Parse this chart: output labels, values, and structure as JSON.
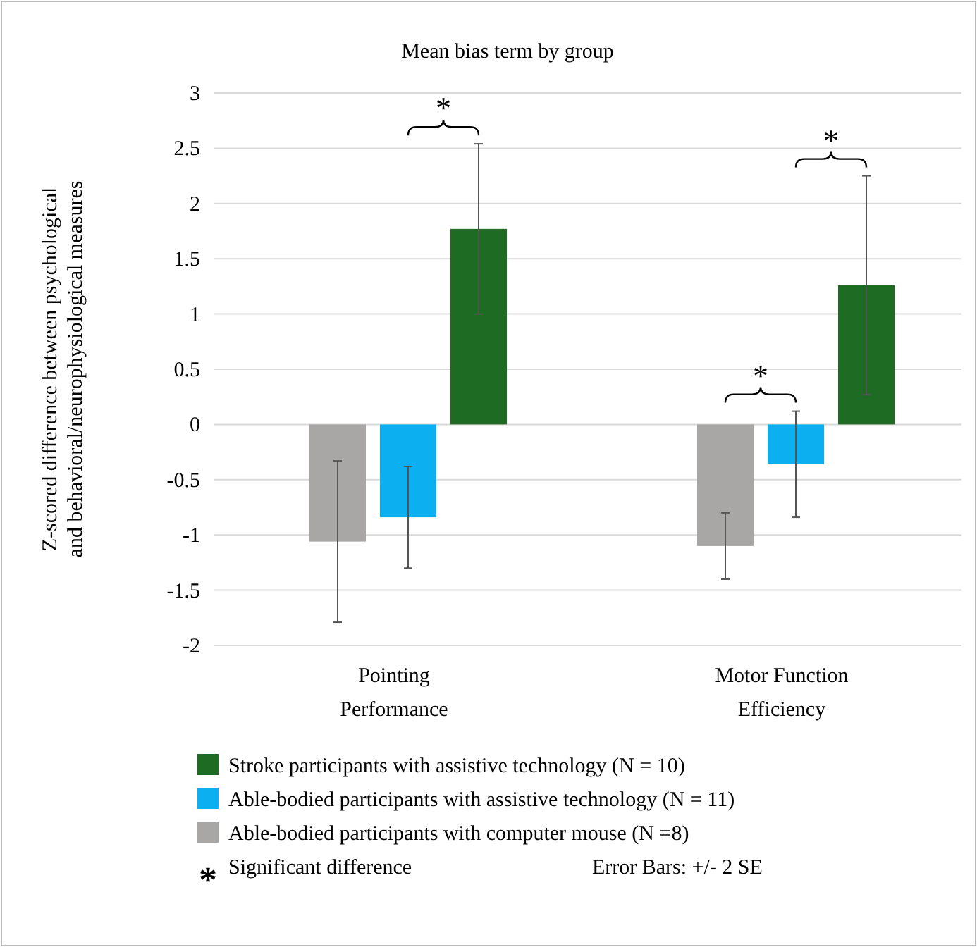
{
  "chart_data": {
    "type": "bar",
    "title": "Mean bias term by group",
    "ylabel": "Z-scored difference between psychological\nand behavioral/neurophysiological measures",
    "categories": [
      "Pointing\nPerformance",
      "Motor Function\nEfficiency"
    ],
    "series": [
      {
        "name": "Stroke participants with assistive technology (N = 10)",
        "color": "#1e6b24",
        "values": [
          1.77,
          1.26
        ],
        "errors": [
          0.77,
          0.99
        ]
      },
      {
        "name": "Able-bodied participants with assistive technology (N = 11)",
        "color": "#0cb0f0",
        "values": [
          -0.84,
          -0.36
        ],
        "errors": [
          0.46,
          0.48
        ]
      },
      {
        "name": "Able-bodied participants with computer mouse (N =8)",
        "color": "#a9a6a6",
        "values": [
          -1.06,
          -1.1
        ],
        "errors": [
          0.73,
          0.3
        ]
      }
    ],
    "ylim": [
      -2,
      3
    ],
    "yticks": [
      -2,
      -1.5,
      -1,
      -0.5,
      0,
      0.5,
      1,
      1.5,
      2,
      2.5,
      3
    ],
    "grid": "y",
    "legend": "bottom",
    "annotations": [
      "*",
      "*",
      "*",
      "Significant difference",
      "Error Bars: +/- 2 SE"
    ]
  }
}
